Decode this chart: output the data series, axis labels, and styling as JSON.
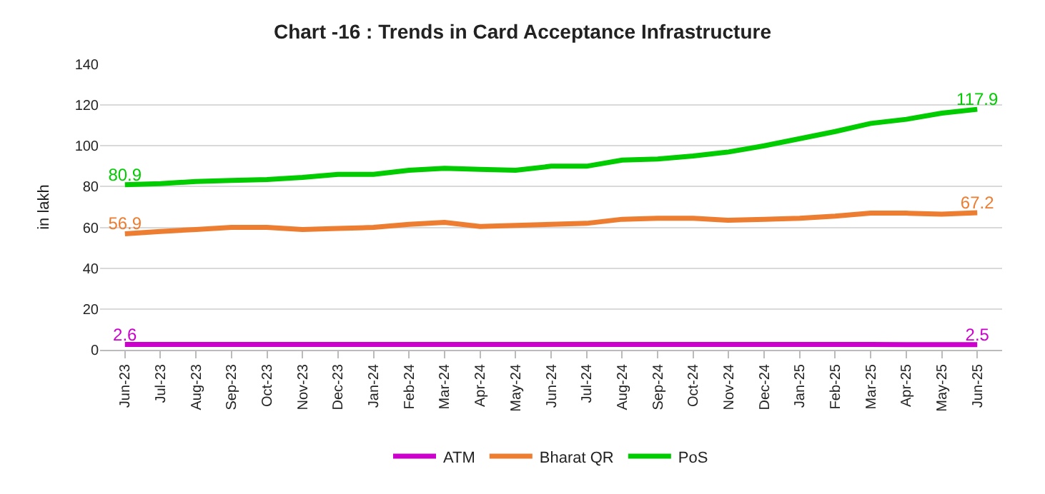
{
  "chart_data": {
    "type": "line",
    "title": "Chart -16 : Trends in Card Acceptance Infrastructure",
    "ylabel": "in lakh",
    "categories": [
      "Jun-23",
      "Jul-23",
      "Aug-23",
      "Sep-23",
      "Oct-23",
      "Nov-23",
      "Dec-23",
      "Jan-24",
      "Feb-24",
      "Mar-24",
      "Apr-24",
      "May-24",
      "Jun-24",
      "Jul-24",
      "Aug-24",
      "Sep-24",
      "Oct-24",
      "Nov-24",
      "Dec-24",
      "Jan-25",
      "Feb-25",
      "Mar-25",
      "Apr-25",
      "May-25",
      "Jun-25"
    ],
    "series": [
      {
        "name": "ATM",
        "color": "#cc00cc",
        "values": [
          2.6,
          2.6,
          2.6,
          2.6,
          2.6,
          2.6,
          2.6,
          2.6,
          2.6,
          2.6,
          2.6,
          2.6,
          2.6,
          2.6,
          2.6,
          2.6,
          2.6,
          2.6,
          2.6,
          2.6,
          2.6,
          2.6,
          2.5,
          2.5,
          2.5
        ],
        "value_labels": [
          "2.6",
          null,
          null,
          null,
          null,
          null,
          null,
          null,
          null,
          null,
          null,
          null,
          null,
          null,
          null,
          null,
          null,
          null,
          null,
          null,
          null,
          null,
          null,
          null,
          "2.5"
        ]
      },
      {
        "name": "Bharat QR",
        "color": "#ed7d31",
        "values": [
          56.9,
          58,
          59,
          60,
          60,
          59,
          59.5,
          60,
          61.5,
          62.5,
          60.5,
          61,
          61.5,
          62,
          64,
          64.5,
          64.5,
          63.5,
          64,
          64.5,
          65.5,
          67,
          67,
          66.5,
          67.2
        ],
        "value_labels": [
          "56.9",
          null,
          null,
          null,
          null,
          null,
          null,
          null,
          null,
          null,
          null,
          null,
          null,
          null,
          null,
          null,
          null,
          null,
          null,
          null,
          null,
          null,
          null,
          null,
          "67.2"
        ]
      },
      {
        "name": "PoS",
        "color": "#00cc00",
        "values": [
          80.9,
          81.5,
          82.5,
          83,
          83.5,
          84.5,
          86,
          86,
          88,
          89,
          88.5,
          88,
          90,
          90,
          93,
          93.5,
          95,
          97,
          100,
          103.5,
          107,
          111,
          113,
          116,
          117.9
        ],
        "value_labels": [
          "80.9",
          null,
          null,
          null,
          null,
          null,
          null,
          null,
          null,
          null,
          null,
          null,
          null,
          null,
          null,
          null,
          null,
          null,
          null,
          null,
          null,
          null,
          null,
          null,
          "117.9"
        ]
      }
    ],
    "ylim": [
      0,
      140
    ],
    "yticks": [
      0,
      20,
      40,
      60,
      80,
      100,
      120,
      140
    ],
    "grid": "y",
    "legend": "bottom",
    "marker": "none",
    "line_style": "solid"
  }
}
